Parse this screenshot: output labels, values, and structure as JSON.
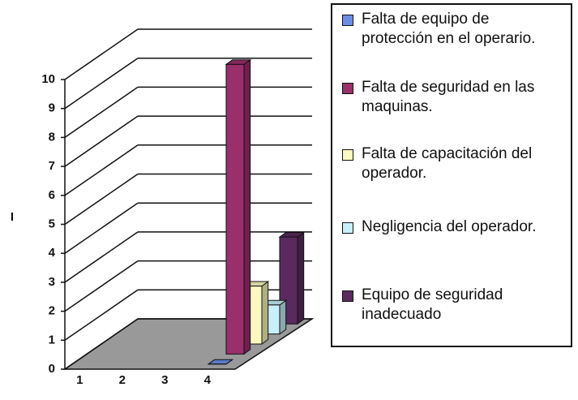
{
  "chart_data": {
    "type": "bar3d",
    "y_label": "I",
    "categories": [
      "1",
      "2",
      "3",
      "4"
    ],
    "series": [
      {
        "name": "Falta de equipo de protección en el operario.",
        "color": "#6a8ee8",
        "values": [
          null,
          null,
          null,
          0
        ]
      },
      {
        "name": "Falta de seguridad en las maquinas.",
        "color": "#9a2f6a",
        "values": [
          null,
          null,
          null,
          10
        ]
      },
      {
        "name": "Falta de capacitación del operador.",
        "color": "#fafac0",
        "values": [
          null,
          null,
          null,
          2
        ]
      },
      {
        "name": "Negligencia del operador.",
        "color": "#c8f0fa",
        "values": [
          null,
          null,
          null,
          1
        ]
      },
      {
        "name": "Equipo de seguridad inadecuado",
        "color": "#5a2a5e",
        "values": [
          null,
          null,
          null,
          3
        ]
      }
    ],
    "ylim": [
      0,
      10
    ],
    "yticks": [
      0,
      1,
      2,
      3,
      4,
      5,
      6,
      7,
      8,
      9,
      10
    ],
    "grid": true
  }
}
